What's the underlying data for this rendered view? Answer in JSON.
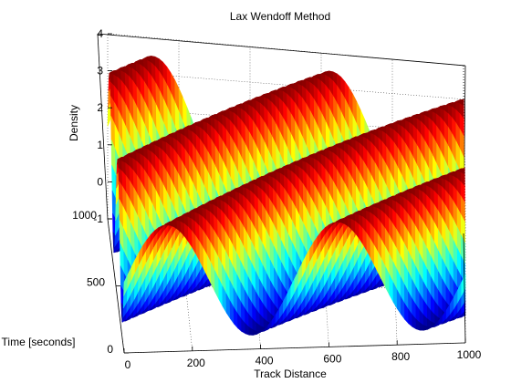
{
  "chart_data": {
    "type": "surface",
    "title": "Lax Wendoff Method",
    "xlabel": "Track Distance",
    "ylabel": "Time [seconds]",
    "zlabel": "Density",
    "x_range": [
      0,
      1000
    ],
    "y_range": [
      0,
      1000
    ],
    "z_range": [
      -1,
      4
    ],
    "x_ticks": [
      "0",
      "200",
      "400",
      "600",
      "800",
      "1000"
    ],
    "y_ticks": [
      "0",
      "500",
      "1000"
    ],
    "z_ticks": [
      "-1",
      "0",
      "1",
      "2",
      "3",
      "4"
    ],
    "surface": {
      "function": "density(x,t) = 1.5 + 2*sin(2*pi*(x - t)/500)",
      "wavelength": 500,
      "wave_speed": 1,
      "mean": 1.5,
      "amplitude": 2
    },
    "colormap": "jet",
    "grid": true
  }
}
